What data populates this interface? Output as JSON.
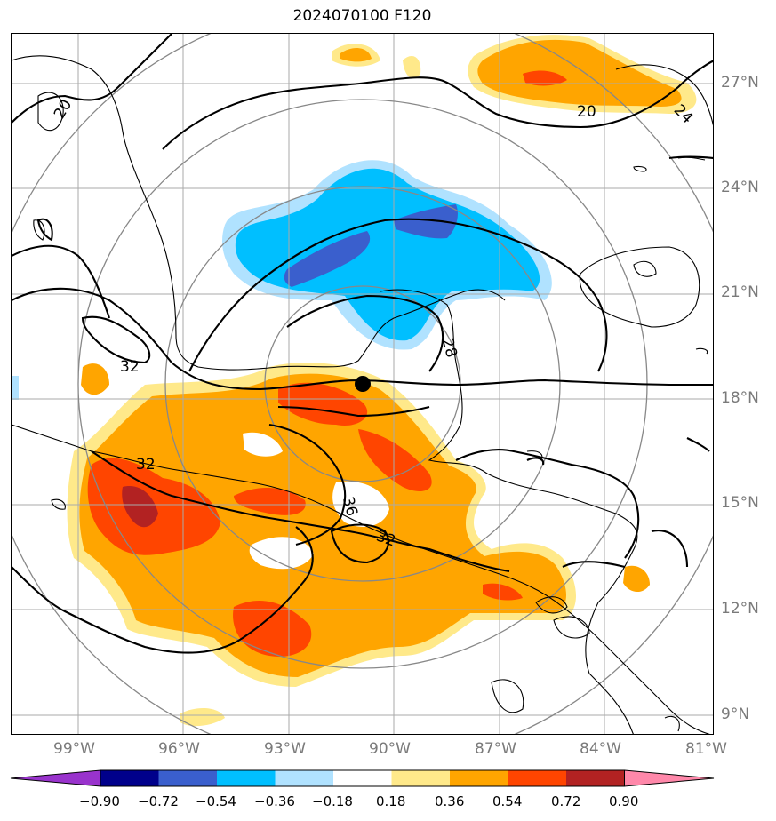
{
  "title": "2024070100 F120",
  "lat_labels": [
    "27°N",
    "24°N",
    "21°N",
    "18°N",
    "15°N",
    "12°N",
    "9°N"
  ],
  "lon_labels": [
    "99°W",
    "96°W",
    "93°W",
    "90°W",
    "87°W",
    "84°W",
    "81°W"
  ],
  "contour_labels": [
    "20",
    "20",
    "24",
    "28",
    "32",
    "32",
    "32",
    "36"
  ],
  "colorbar": {
    "ticks": [
      "−0.90",
      "−0.72",
      "−0.54",
      "−0.36",
      "−0.18",
      "0.18",
      "0.36",
      "0.54",
      "0.72",
      "0.90"
    ],
    "colors": [
      "#9933cc",
      "#00008b",
      "#3a5fcd",
      "#00bfff",
      "#b0e2ff",
      "#ffffff",
      "#ffe98a",
      "#ffa500",
      "#ff4500",
      "#b22222",
      "#ff88aa"
    ]
  },
  "fill_colors": {
    "light_blue": "#b0e2ff",
    "blue": "#00bfff",
    "dark_blue": "#3a5fcd",
    "light_yellow": "#ffe98a",
    "orange": "#ffa500",
    "red_orange": "#ff4500",
    "dark_red": "#b22222"
  },
  "storm_center": {
    "lat": 18.4,
    "lon": "90.9°W"
  }
}
